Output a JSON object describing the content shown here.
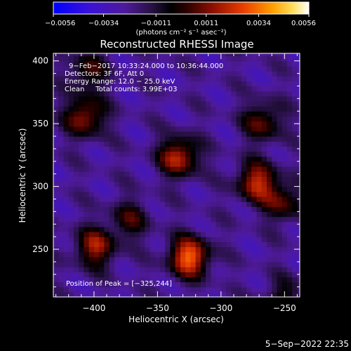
{
  "chart_data": {
    "type": "heatmap",
    "title": "Reconstructed RHESSI Image",
    "xlabel": "Heliocentric X (arcsec)",
    "ylabel": "Heliocentric Y (arcsec)",
    "xlim": [
      -432,
      -238
    ],
    "ylim": [
      212,
      406
    ],
    "x_ticks": [
      -400,
      -350,
      -300,
      -250
    ],
    "x_tick_labels": [
      "−400",
      "−350",
      "−300",
      "−250"
    ],
    "y_ticks": [
      250,
      300,
      350,
      400
    ],
    "y_tick_labels": [
      "250",
      "300",
      "350",
      "400"
    ],
    "colorbar": {
      "range": [
        -0.0056,
        0.0056
      ],
      "ticks": [
        -0.0056,
        -0.0034,
        -0.0011,
        0.0011,
        0.0034,
        0.0056
      ],
      "tick_labels": [
        "−0.0056",
        "−0.0034",
        "−0.0011",
        "0.0011",
        "0.0034",
        "0.0056"
      ],
      "units_label": "(photons cm⁻² s⁻¹ asec⁻²)"
    },
    "annotations": {
      "time_range": "9−Feb−2017 10:33:24.000 to 10:36:44.000",
      "detectors": "Detectors: 3F 6F, Att 0",
      "energy_range": "Energy Range: 12.0 − 25.0 keV",
      "clean": "Clean     Total counts: 3.99E+03",
      "peak": "Position of Peak = [−325,244]"
    },
    "grid": false,
    "peak_position": [
      -325,
      244
    ],
    "sources": [
      {
        "x": -325,
        "y": 244,
        "intensity": 0.0056
      },
      {
        "x": -333,
        "y": 324,
        "intensity": 0.0044
      },
      {
        "x": -272,
        "y": 304,
        "intensity": 0.0043
      },
      {
        "x": -399,
        "y": 252,
        "intensity": 0.0039
      },
      {
        "x": -407,
        "y": 356,
        "intensity": 0.0039
      },
      {
        "x": -267,
        "y": 352,
        "intensity": 0.0031
      },
      {
        "x": -251,
        "y": 288,
        "intensity": 0.0029
      },
      {
        "x": -405,
        "y": 392,
        "intensity": 0.0026
      },
      {
        "x": -372,
        "y": 274,
        "intensity": 0.0024
      },
      {
        "x": -250,
        "y": 212,
        "intensity": 0.002
      }
    ]
  },
  "footer": {
    "timestamp": "5−Sep−2022 22:35"
  }
}
